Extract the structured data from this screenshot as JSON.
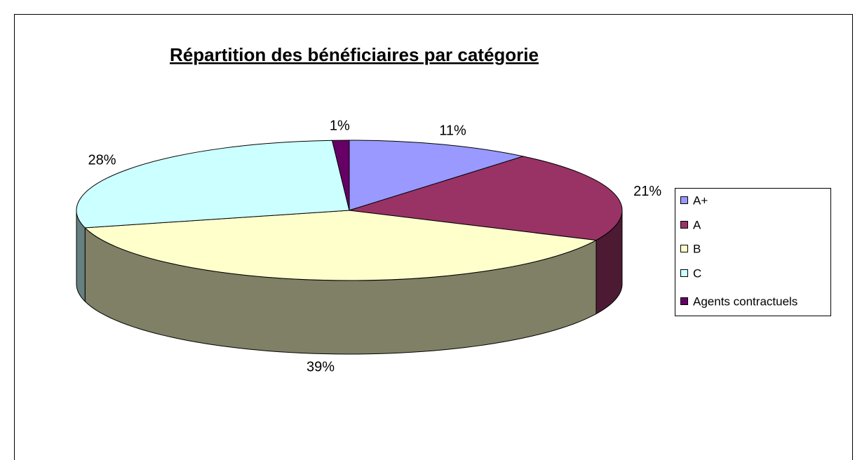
{
  "chart_data": {
    "type": "pie3d",
    "title": "Répartition des bénéficiaires par catégorie",
    "categories": [
      "A+",
      "A",
      "B",
      "C",
      "Agents contractuels"
    ],
    "values": [
      11,
      21,
      39,
      28,
      1
    ],
    "value_labels": [
      "11%",
      "21%",
      "39%",
      "28%",
      "1%"
    ],
    "colors": [
      "#9999ff",
      "#993366",
      "#ffffcc",
      "#ccffff",
      "#660066"
    ],
    "legend": "right"
  }
}
